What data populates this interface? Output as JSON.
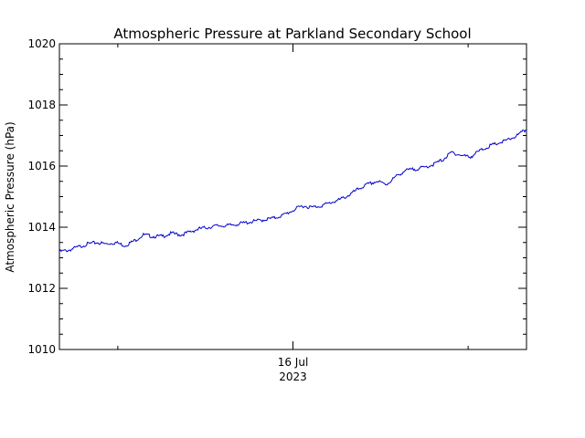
{
  "chart_data": {
    "type": "line",
    "title": "Atmospheric Pressure at Parkland Secondary School",
    "xlabel": "",
    "ylabel": "Atmospheric Pressure (hPa)",
    "ylim": [
      1010,
      1020
    ],
    "y_ticks": [
      "1010",
      "1012",
      "1014",
      "1016",
      "1018",
      "1020"
    ],
    "x_tick_labels": [
      {
        "day": "16 Jul",
        "year": "2023",
        "x": 0.5
      }
    ],
    "xlim": [
      0,
      1
    ],
    "grid": false,
    "legend": "none",
    "series": [
      {
        "color": "#0000cc",
        "x": [
          0.0,
          0.02,
          0.04,
          0.06,
          0.08,
          0.1,
          0.12,
          0.14,
          0.16,
          0.18,
          0.2,
          0.22,
          0.24,
          0.26,
          0.28,
          0.3,
          0.32,
          0.34,
          0.36,
          0.38,
          0.4,
          0.42,
          0.44,
          0.46,
          0.48,
          0.5,
          0.52,
          0.54,
          0.56,
          0.58,
          0.6,
          0.62,
          0.64,
          0.66,
          0.68,
          0.7,
          0.72,
          0.74,
          0.76,
          0.78,
          0.8,
          0.82,
          0.84,
          0.86,
          0.88,
          0.9,
          0.92,
          0.94,
          0.96,
          0.98,
          1.0
        ],
        "values": [
          1013.2,
          1013.25,
          1013.35,
          1013.45,
          1013.5,
          1013.45,
          1013.5,
          1013.4,
          1013.55,
          1013.75,
          1013.7,
          1013.7,
          1013.8,
          1013.75,
          1013.85,
          1013.95,
          1014.0,
          1014.05,
          1014.05,
          1014.1,
          1014.15,
          1014.2,
          1014.25,
          1014.3,
          1014.4,
          1014.55,
          1014.7,
          1014.65,
          1014.7,
          1014.8,
          1014.9,
          1015.05,
          1015.25,
          1015.4,
          1015.5,
          1015.4,
          1015.65,
          1015.85,
          1015.9,
          1015.95,
          1016.05,
          1016.2,
          1016.45,
          1016.35,
          1016.3,
          1016.5,
          1016.65,
          1016.75,
          1016.85,
          1017.0,
          1017.2
        ]
      }
    ]
  }
}
